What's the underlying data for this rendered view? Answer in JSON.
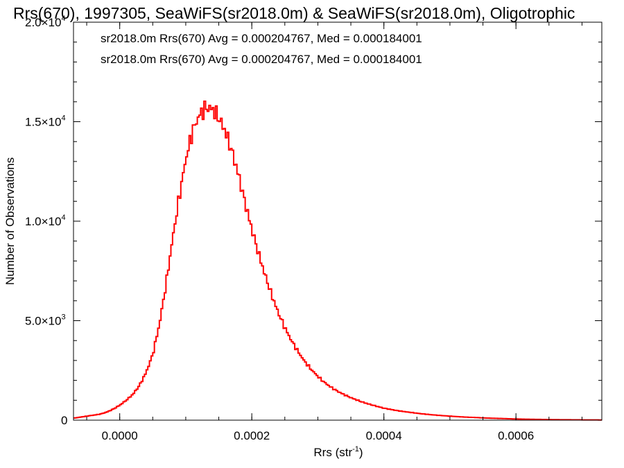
{
  "chart_data": {
    "type": "histogram-step",
    "title": "Rrs(670), 1997305, SeaWiFS(sr2018.0m) & SeaWiFS(sr2018.0m), Oligotrophic",
    "xlabel": "Rrs (str",
    "xlabel_sup": "-1",
    "xlabel_end": ")",
    "ylabel": "Number of Observations",
    "xlim": [
      -7e-05,
      0.00073
    ],
    "ylim": [
      0,
      20000
    ],
    "xticks": [
      {
        "value": 0.0,
        "label": "0.0000"
      },
      {
        "value": 0.0002,
        "label": "0.0002"
      },
      {
        "value": 0.0004,
        "label": "0.0004"
      },
      {
        "value": 0.0006,
        "label": "0.0006"
      }
    ],
    "yticks": [
      {
        "value": 0,
        "label": "0",
        "sup": ""
      },
      {
        "value": 5000,
        "label": "5.0×10",
        "sup": "3"
      },
      {
        "value": 10000,
        "label": "1.0×10",
        "sup": "4"
      },
      {
        "value": 15000,
        "label": "1.5×10",
        "sup": "4"
      },
      {
        "value": 20000,
        "label": "2.0×10",
        "sup": "4"
      }
    ],
    "x_minor_per_major": 4,
    "y_minor_per_major": 5,
    "legend": [
      {
        "text": "sr2018.0m Rrs(670) Avg = 0.000204767, Med = 0.000184001",
        "color": "#000000"
      },
      {
        "text": "sr2018.0m Rrs(670) Avg = 0.000204767, Med = 0.000184001",
        "color": "#ff0000"
      }
    ],
    "legend_position": "top-left",
    "series": [
      {
        "color": "#ff0000",
        "x": [
          -7e-05,
          -6e-05,
          -5e-05,
          -4e-05,
          -3e-05,
          -2e-05,
          -1e-05,
          0.0,
          1e-05,
          2e-05,
          3e-05,
          4e-05,
          5e-05,
          6e-05,
          7e-05,
          8e-05,
          9e-05,
          0.0001,
          0.00011,
          0.00012,
          0.00013,
          0.00014,
          0.00015,
          0.00016,
          0.00017,
          0.00018,
          0.00019,
          0.0002,
          0.00021,
          0.00022,
          0.00023,
          0.00024,
          0.00025,
          0.00026,
          0.00027,
          0.00028,
          0.00029,
          0.0003,
          0.00031,
          0.00032,
          0.00033,
          0.00034,
          0.00035,
          0.00036,
          0.00037,
          0.00038,
          0.00039,
          0.0004,
          0.00042,
          0.00044,
          0.00046,
          0.00048,
          0.0005,
          0.00052,
          0.00054,
          0.00056,
          0.00058,
          0.0006,
          0.00062,
          0.00064,
          0.00066,
          0.00068,
          0.0007,
          0.00073
        ],
        "y": [
          100,
          150,
          200,
          250,
          300,
          400,
          550,
          750,
          1000,
          1300,
          1750,
          2400,
          3300,
          4800,
          6800,
          9100,
          11200,
          13100,
          14500,
          15300,
          15700,
          15650,
          15200,
          14500,
          13500,
          12300,
          10900,
          9600,
          8400,
          7300,
          6300,
          5400,
          4650,
          4000,
          3450,
          2950,
          2550,
          2200,
          1900,
          1650,
          1450,
          1280,
          1130,
          1000,
          880,
          780,
          690,
          600,
          480,
          390,
          310,
          250,
          200,
          160,
          130,
          100,
          80,
          60,
          45,
          35,
          25,
          20,
          15,
          10
        ]
      }
    ]
  }
}
